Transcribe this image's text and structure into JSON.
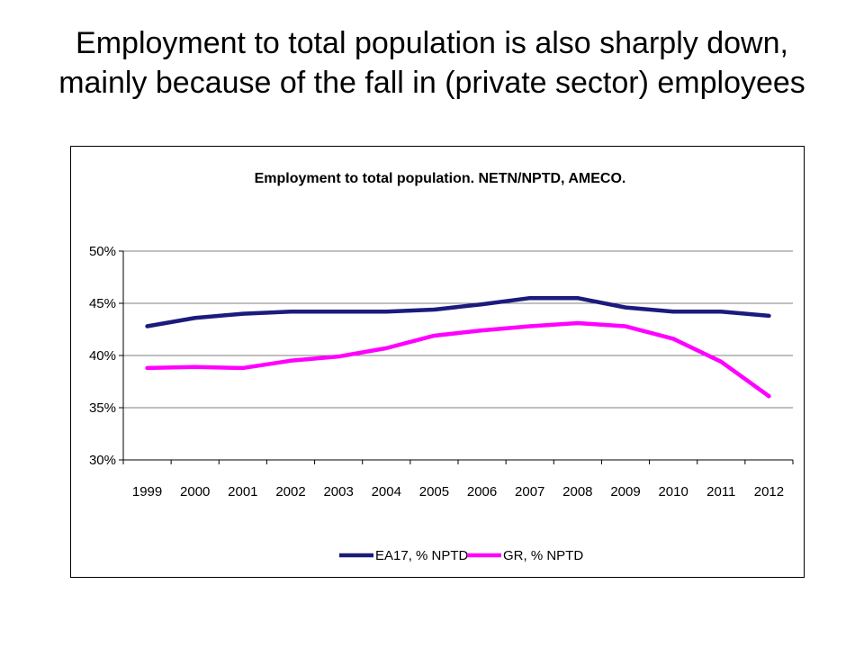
{
  "slide": {
    "title": "Employment to total population is also sharply down,  mainly because of the fall in (private sector) employees"
  },
  "colors": {
    "ea17": "#1B1B7E",
    "gr": "#FF00FF",
    "grid": "#808080",
    "text": "#000000"
  },
  "chart_data": {
    "type": "line",
    "title": "Employment to total population. NETN/NPTD, AMECO.",
    "categories": [
      "1999",
      "2000",
      "2001",
      "2002",
      "2003",
      "2004",
      "2005",
      "2006",
      "2007",
      "2008",
      "2009",
      "2010",
      "2011",
      "2012"
    ],
    "series": [
      {
        "name": "EA17, % NPTD",
        "color": "#1B1B7E",
        "values": [
          42.8,
          43.6,
          44.0,
          44.2,
          44.2,
          44.2,
          44.4,
          44.9,
          45.5,
          45.5,
          44.6,
          44.2,
          44.2,
          43.8
        ]
      },
      {
        "name": "GR, % NPTD",
        "color": "#FF00FF",
        "values": [
          38.8,
          38.9,
          38.8,
          39.5,
          39.9,
          40.7,
          41.9,
          42.4,
          42.8,
          43.1,
          42.8,
          41.6,
          39.4,
          36.1
        ]
      }
    ],
    "ylim": [
      30,
      50
    ],
    "yticks": [
      30,
      35,
      40,
      45,
      50
    ],
    "ytick_labels": [
      "30%",
      "35%",
      "40%",
      "45%",
      "50%"
    ],
    "xlabel": "",
    "ylabel": "",
    "grid": true,
    "legend_position": "bottom"
  }
}
